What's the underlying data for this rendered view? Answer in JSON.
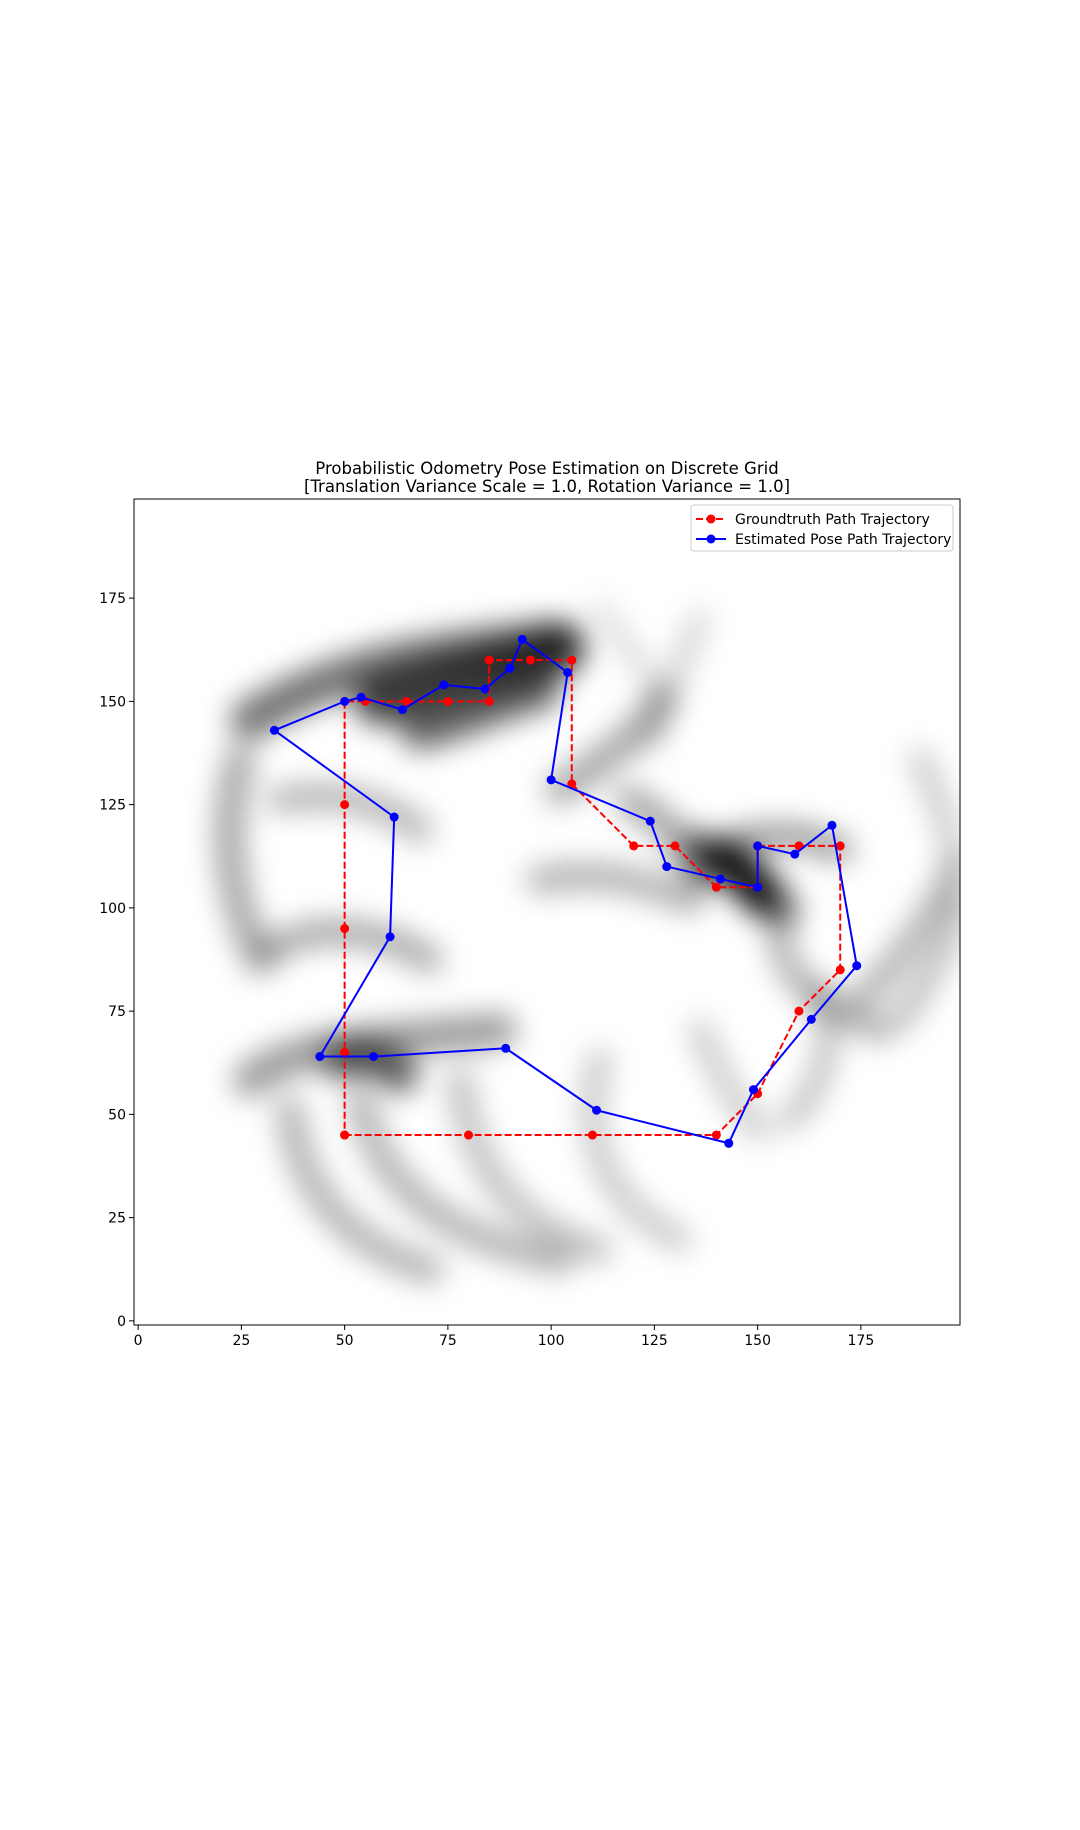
{
  "chart_data": {
    "type": "line",
    "title": "Probabilistic Odometry Pose Estimation on Discrete Grid",
    "subtitle": "[Translation Variance Scale = 1.0, Rotation Variance = 1.0]",
    "xlim": [
      -1,
      199
    ],
    "ylim": [
      -1,
      199
    ],
    "x_ticks": [
      0,
      25,
      50,
      75,
      100,
      125,
      150,
      175
    ],
    "y_ticks": [
      0,
      25,
      50,
      75,
      100,
      125,
      150,
      175
    ],
    "legend_position": "top-right",
    "background": "grayscale probability heatmap (darker = higher probability)",
    "series": [
      {
        "name": "Groundtruth Path Trajectory",
        "color": "#ff0000",
        "line_style": "dashed",
        "marker": "circle",
        "points": [
          [
            50,
            45
          ],
          [
            80,
            45
          ],
          [
            110,
            45
          ],
          [
            140,
            45
          ],
          [
            150,
            55
          ],
          [
            160,
            75
          ],
          [
            170,
            85
          ],
          [
            170,
            115
          ],
          [
            160,
            115
          ],
          [
            150,
            115
          ],
          [
            150,
            105
          ],
          [
            140,
            105
          ],
          [
            130,
            115
          ],
          [
            120,
            115
          ],
          [
            105,
            130
          ],
          [
            105,
            160
          ],
          [
            95,
            160
          ],
          [
            85,
            160
          ],
          [
            85,
            150
          ],
          [
            75,
            150
          ],
          [
            65,
            150
          ],
          [
            55,
            150
          ],
          [
            50,
            150
          ],
          [
            50,
            125
          ],
          [
            50,
            95
          ],
          [
            50,
            65
          ],
          [
            50,
            45
          ]
        ]
      },
      {
        "name": "Estimated Pose Path Trajectory",
        "color": "#0000ff",
        "line_style": "solid",
        "marker": "circle",
        "points": [
          [
            143,
            43
          ],
          [
            149,
            56
          ],
          [
            163,
            73
          ],
          [
            174,
            86
          ],
          [
            168,
            120
          ],
          [
            159,
            113
          ],
          [
            150,
            115
          ],
          [
            150,
            105
          ],
          [
            141,
            107
          ],
          [
            128,
            110
          ],
          [
            124,
            121
          ],
          [
            100,
            131
          ],
          [
            104,
            157
          ],
          [
            93,
            165
          ],
          [
            90,
            158
          ],
          [
            84,
            153
          ],
          [
            74,
            154
          ],
          [
            64,
            148
          ],
          [
            54,
            151
          ],
          [
            50,
            150
          ],
          [
            33,
            143
          ],
          [
            62,
            122
          ],
          [
            61,
            93
          ],
          [
            44,
            64
          ],
          [
            57,
            64
          ],
          [
            89,
            66
          ],
          [
            111,
            51
          ],
          [
            143,
            43
          ]
        ]
      }
    ]
  }
}
